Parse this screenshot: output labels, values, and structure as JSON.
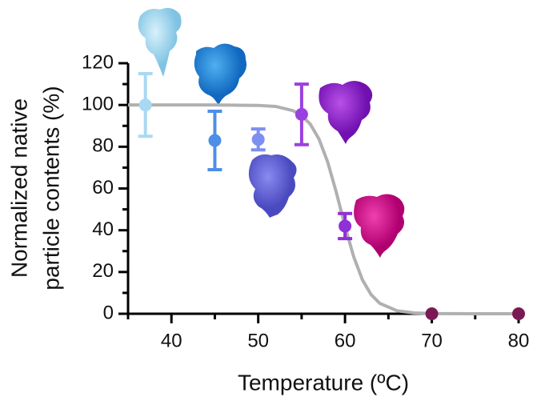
{
  "chart_data": {
    "type": "scatter",
    "xlabel": "Temperature (ºC)",
    "ylabel": [
      "Normalized native",
      "particle contents (%)"
    ],
    "xlim": [
      35,
      80
    ],
    "ylim": [
      0,
      120
    ],
    "xticks": [
      40,
      50,
      60,
      70,
      80
    ],
    "yticks": [
      0,
      20,
      40,
      60,
      80,
      100,
      120
    ],
    "xminorticks": [
      35,
      45,
      55,
      65,
      75
    ],
    "yminorticks": [
      10,
      30,
      50,
      70,
      90,
      110
    ],
    "points": {
      "x": [
        37,
        45,
        50,
        55,
        60,
        70,
        80
      ],
      "y": [
        100,
        83,
        83.5,
        95.5,
        42,
        0,
        0
      ],
      "errors": [
        15,
        14,
        5,
        14.5,
        6,
        null,
        null
      ],
      "colors": [
        "#a9d9f2",
        "#4d8ee8",
        "#7d8ff0",
        "#9b40e0",
        "#9030d8",
        "#7a1a55",
        "#7a1a55"
      ]
    },
    "fit": {
      "color": "#b0b0b0",
      "x": [
        35,
        40,
        45,
        50,
        52,
        54,
        55,
        56,
        57,
        58,
        59,
        60,
        61,
        62,
        63,
        64,
        66,
        68,
        70,
        75,
        80
      ],
      "y": [
        100,
        100,
        100,
        99.8,
        99.3,
        97.3,
        95,
        90.8,
        83.7,
        72.7,
        58.1,
        41.9,
        27.3,
        16.3,
        9.2,
        5,
        1.4,
        0.4,
        0.1,
        0,
        0
      ]
    }
  }
}
